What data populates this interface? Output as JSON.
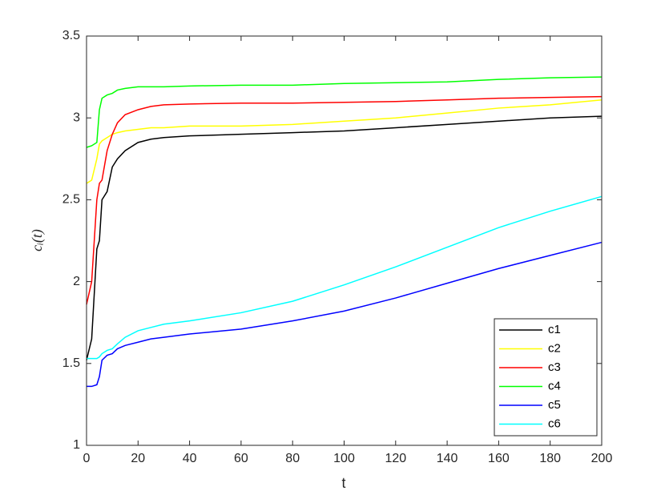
{
  "chart_data": {
    "type": "line",
    "xlabel": "t",
    "ylabel": "cᵢ(t)",
    "x": [
      0,
      2,
      4,
      5,
      6,
      8,
      10,
      12,
      15,
      20,
      25,
      30,
      40,
      60,
      80,
      100,
      120,
      140,
      160,
      180,
      200
    ],
    "series": [
      {
        "name": "c1",
        "color": "#000000",
        "values": [
          1.52,
          1.65,
          2.2,
          2.25,
          2.5,
          2.55,
          2.7,
          2.75,
          2.8,
          2.85,
          2.87,
          2.88,
          2.89,
          2.9,
          2.91,
          2.92,
          2.94,
          2.96,
          2.98,
          3.0,
          3.01
        ]
      },
      {
        "name": "c2",
        "color": "#ffff00",
        "values": [
          2.6,
          2.62,
          2.75,
          2.84,
          2.86,
          2.88,
          2.9,
          2.91,
          2.92,
          2.93,
          2.94,
          2.94,
          2.95,
          2.95,
          2.96,
          2.98,
          3.0,
          3.03,
          3.06,
          3.08,
          3.11
        ]
      },
      {
        "name": "c3",
        "color": "#ff0000",
        "values": [
          1.86,
          2.0,
          2.5,
          2.6,
          2.62,
          2.8,
          2.9,
          2.97,
          3.02,
          3.05,
          3.07,
          3.08,
          3.085,
          3.09,
          3.09,
          3.095,
          3.1,
          3.11,
          3.12,
          3.125,
          3.13
        ]
      },
      {
        "name": "c4",
        "color": "#00ff00",
        "values": [
          2.82,
          2.83,
          2.85,
          3.05,
          3.12,
          3.14,
          3.15,
          3.17,
          3.18,
          3.19,
          3.19,
          3.19,
          3.195,
          3.2,
          3.2,
          3.21,
          3.215,
          3.22,
          3.235,
          3.245,
          3.25
        ]
      },
      {
        "name": "c5",
        "color": "#0000ff",
        "values": [
          1.36,
          1.36,
          1.37,
          1.42,
          1.52,
          1.55,
          1.56,
          1.59,
          1.61,
          1.63,
          1.65,
          1.66,
          1.68,
          1.71,
          1.76,
          1.82,
          1.9,
          1.99,
          2.08,
          2.16,
          2.24
        ]
      },
      {
        "name": "c6",
        "color": "#00ffff",
        "values": [
          1.53,
          1.53,
          1.53,
          1.54,
          1.56,
          1.58,
          1.59,
          1.62,
          1.66,
          1.7,
          1.72,
          1.74,
          1.76,
          1.81,
          1.88,
          1.98,
          2.09,
          2.21,
          2.33,
          2.43,
          2.52
        ]
      }
    ],
    "xlim": [
      0,
      200
    ],
    "xticks": [
      0,
      20,
      40,
      60,
      80,
      100,
      120,
      140,
      160,
      180,
      200
    ],
    "ylim": [
      1,
      3.5
    ],
    "yticks": [
      1,
      1.5,
      2,
      2.5,
      3,
      3.5
    ],
    "legend": "lower right"
  }
}
